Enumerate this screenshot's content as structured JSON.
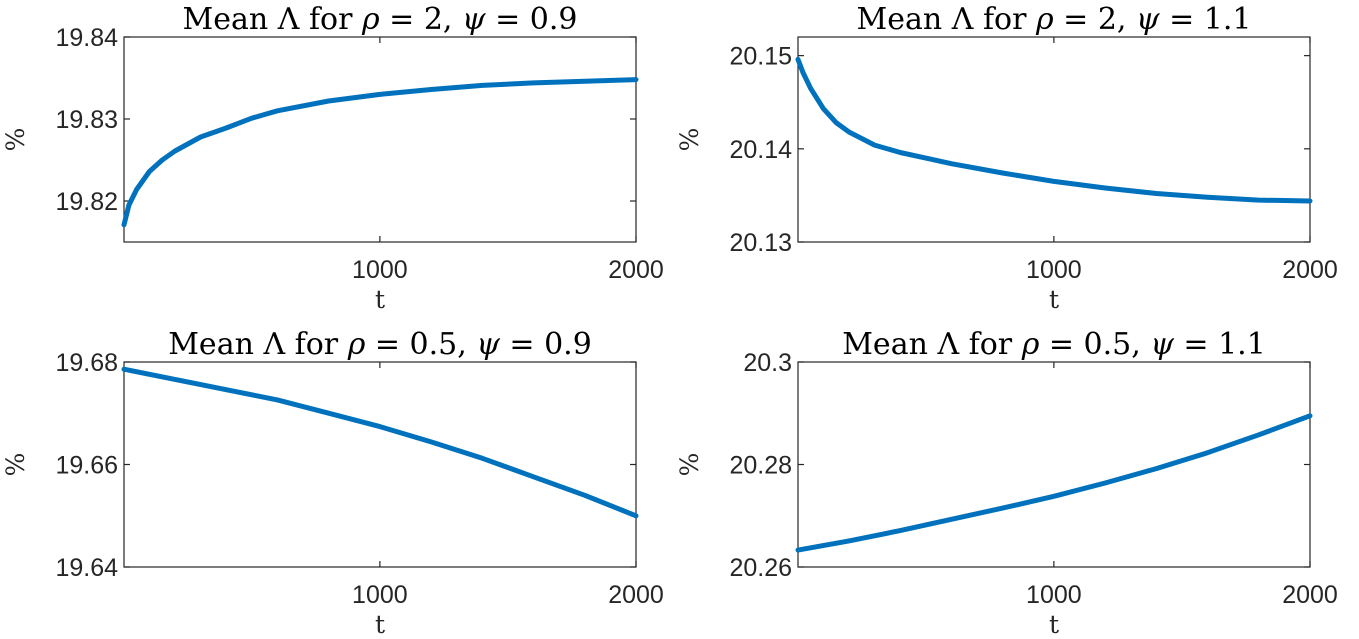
{
  "chart_data": [
    {
      "type": "line",
      "title_parts": [
        "Mean ",
        "Λ",
        " for ",
        "ρ",
        " = 2, ",
        "ψ",
        " = 0.9"
      ],
      "xlabel": "t",
      "ylabel": "%",
      "xlim": [
        1,
        2000
      ],
      "ylim": [
        19.815,
        19.84
      ],
      "xticks": [
        1000,
        2000
      ],
      "yticks": [
        19.82,
        19.83,
        19.84
      ],
      "ytick_labels": [
        "19.82",
        "19.83",
        "19.84"
      ],
      "xtick_labels": [
        "1000",
        "2000"
      ],
      "grid": false,
      "color": "#0072BD",
      "x": [
        1,
        20,
        50,
        100,
        150,
        200,
        300,
        400,
        500,
        600,
        800,
        1000,
        1200,
        1400,
        1600,
        1800,
        2000
      ],
      "y": [
        19.8171,
        19.8195,
        19.8214,
        19.8236,
        19.825,
        19.8261,
        19.8278,
        19.8289,
        19.8301,
        19.831,
        19.8322,
        19.833,
        19.8336,
        19.8341,
        19.8344,
        19.8346,
        19.8348
      ]
    },
    {
      "type": "line",
      "title_parts": [
        "Mean ",
        "Λ",
        " for ",
        "ρ",
        " = 2, ",
        "ψ",
        " = 1.1"
      ],
      "xlabel": "t",
      "ylabel": "%",
      "xlim": [
        1,
        2000
      ],
      "ylim": [
        20.13,
        20.152
      ],
      "xticks": [
        1000,
        2000
      ],
      "yticks": [
        20.13,
        20.14,
        20.15
      ],
      "ytick_labels": [
        "20.13",
        "20.14",
        "20.15"
      ],
      "xtick_labels": [
        "1000",
        "2000"
      ],
      "grid": false,
      "color": "#0072BD",
      "x": [
        1,
        20,
        50,
        100,
        150,
        200,
        300,
        400,
        500,
        600,
        800,
        1000,
        1200,
        1400,
        1600,
        1800,
        2000
      ],
      "y": [
        20.1496,
        20.1482,
        20.1465,
        20.1443,
        20.1428,
        20.1418,
        20.1404,
        20.1396,
        20.139,
        20.1384,
        20.1374,
        20.1365,
        20.1358,
        20.1352,
        20.1348,
        20.1345,
        20.1344
      ]
    },
    {
      "type": "line",
      "title_parts": [
        "Mean ",
        "Λ",
        " for ",
        "ρ",
        " = 0.5, ",
        "ψ",
        " = 0.9"
      ],
      "xlabel": "t",
      "ylabel": "%",
      "xlim": [
        1,
        2000
      ],
      "ylim": [
        19.64,
        19.68
      ],
      "xticks": [
        1000,
        2000
      ],
      "yticks": [
        19.64,
        19.66,
        19.68
      ],
      "ytick_labels": [
        "19.64",
        "19.66",
        "19.68"
      ],
      "xtick_labels": [
        "1000",
        "2000"
      ],
      "grid": false,
      "color": "#0072BD",
      "x": [
        1,
        200,
        400,
        600,
        800,
        1000,
        1200,
        1400,
        1600,
        1800,
        2000
      ],
      "y": [
        19.6786,
        19.6766,
        19.6746,
        19.6726,
        19.67,
        19.6674,
        19.6644,
        19.6612,
        19.6576,
        19.654,
        19.65
      ]
    },
    {
      "type": "line",
      "title_parts": [
        "Mean ",
        "Λ",
        " for ",
        "ρ",
        " = 0.5, ",
        "ψ",
        " = 1.1"
      ],
      "xlabel": "t",
      "ylabel": "%",
      "xlim": [
        1,
        2000
      ],
      "ylim": [
        20.26,
        20.3
      ],
      "xticks": [
        1000,
        2000
      ],
      "yticks": [
        20.26,
        20.28,
        20.3
      ],
      "ytick_labels": [
        "20.26",
        "20.28",
        "20.3"
      ],
      "xtick_labels": [
        "1000",
        "2000"
      ],
      "grid": false,
      "color": "#0072BD",
      "x": [
        1,
        200,
        400,
        600,
        800,
        1000,
        1200,
        1400,
        1600,
        1800,
        2000
      ],
      "y": [
        20.2633,
        20.2651,
        20.2671,
        20.2693,
        20.2715,
        20.2738,
        20.2764,
        20.2792,
        20.2823,
        20.2858,
        20.2895
      ]
    }
  ]
}
